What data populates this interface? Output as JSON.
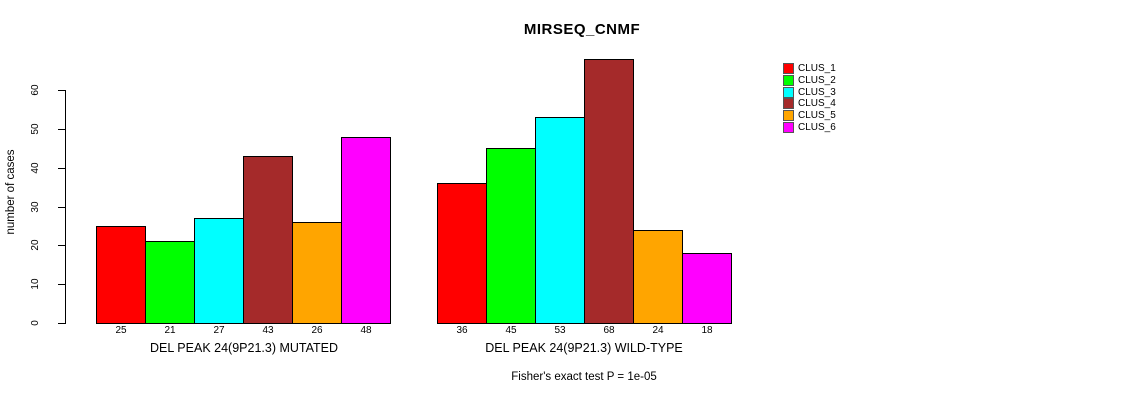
{
  "title": "MIRSEQ_CNMF",
  "chart_data": {
    "type": "bar",
    "title": "MIRSEQ_CNMF",
    "xlabel": "",
    "ylabel": "number of cases",
    "ylim": [
      0,
      60
    ],
    "yticks": [
      0,
      10,
      20,
      30,
      40,
      50,
      60
    ],
    "grid": false,
    "legend_position": "right",
    "legend_entries": [
      {
        "name": "CLUS_1",
        "color": "#FF0000"
      },
      {
        "name": "CLUS_2",
        "color": "#00FF00"
      },
      {
        "name": "CLUS_3",
        "color": "#00FFFF"
      },
      {
        "name": "CLUS_4",
        "color": "#A52A2A"
      },
      {
        "name": "CLUS_5",
        "color": "#FFA500"
      },
      {
        "name": "CLUS_6",
        "color": "#FF00FF"
      }
    ],
    "groups": [
      {
        "label": "DEL PEAK 24(9P21.3) MUTATED",
        "values": [
          25,
          21,
          27,
          43,
          26,
          48
        ]
      },
      {
        "label": "DEL PEAK 24(9P21.3) WILD-TYPE",
        "values": [
          36,
          45,
          53,
          68,
          24,
          18
        ]
      }
    ],
    "annotation": "Fisher's exact test P = 1e-05"
  },
  "colors": {
    "background": "#FFFFFF",
    "axis": "#000000",
    "bar_border": "#000000"
  }
}
